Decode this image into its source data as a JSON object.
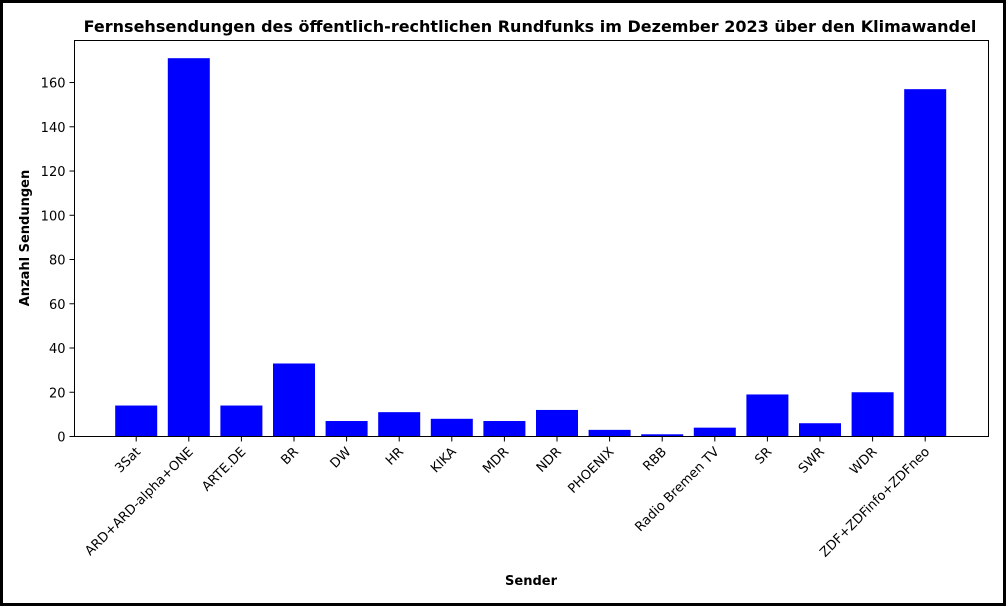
{
  "chart_data": {
    "type": "bar",
    "title": "Fernsehsendungen des öffentlich-rechtlichen Rundfunks im Dezember 2023 über den Klimawandel",
    "xlabel": "Sender",
    "ylabel": "Anzahl Sendungen",
    "categories": [
      "3Sat",
      "ARD+ARD-alpha+ONE",
      "ARTE.DE",
      "BR",
      "DW",
      "HR",
      "KIKA",
      "MDR",
      "NDR",
      "PHOENIX",
      "RBB",
      "Radio Bremen TV",
      "SR",
      "SWR",
      "WDR",
      "ZDF+ZDFinfo+ZDFneo"
    ],
    "values": [
      14,
      171,
      14,
      33,
      7,
      11,
      8,
      7,
      12,
      3,
      1,
      4,
      19,
      6,
      20,
      157
    ],
    "ylim": [
      0,
      179
    ],
    "yticks": [
      0,
      20,
      40,
      60,
      80,
      100,
      120,
      140,
      160
    ],
    "bar_color": "#0000ff",
    "grid": false,
    "legend": "none"
  }
}
